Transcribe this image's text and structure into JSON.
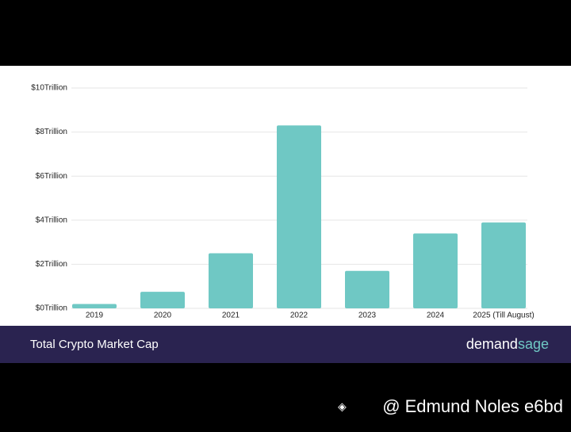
{
  "chart_data": {
    "type": "bar",
    "title": "Total Crypto Market Cap",
    "categories": [
      "2019",
      "2020",
      "2021",
      "2022",
      "2023",
      "2024",
      "2025 (Till August)"
    ],
    "values": [
      0.2,
      0.75,
      2.5,
      8.3,
      1.7,
      3.4,
      3.9
    ],
    "color": "#6fc8c4",
    "ylim": [
      0,
      10
    ],
    "yticks": [
      {
        "value": 0,
        "label": "$0Trillion"
      },
      {
        "value": 2,
        "label": "$2Trillion"
      },
      {
        "value": 4,
        "label": "$4Trillion"
      },
      {
        "value": 6,
        "label": "$6Trillion"
      },
      {
        "value": 8,
        "label": "$8Trillion"
      },
      {
        "value": 10,
        "label": "$10Trillion"
      }
    ],
    "grid": true
  },
  "brand": {
    "part1": "demand",
    "part2": "sage"
  },
  "watermark": "@ Edmund Noles e6bd"
}
